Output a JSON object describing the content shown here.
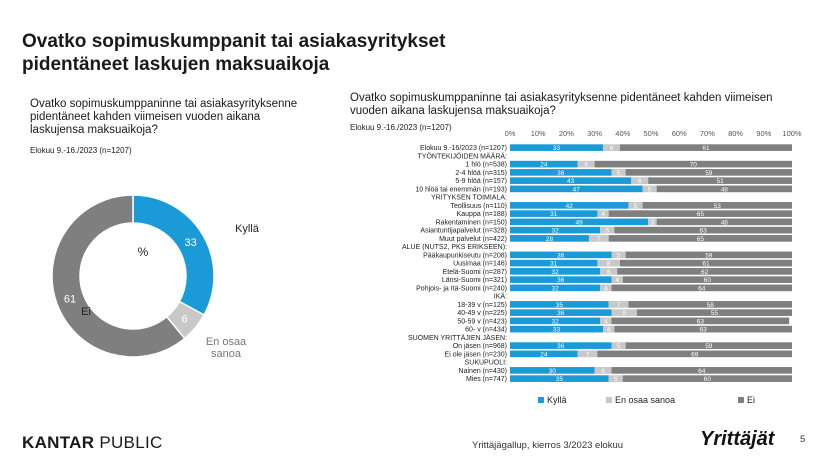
{
  "page": {
    "title": "Ovatko sopimuskumppanit tai asiakasyritykset pidentäneet laskujen maksuaikoja",
    "footer": "Yrittäjägallup, kierros 3/2023 elokuu",
    "page_number": "5",
    "logo_kantar": "KANTAR",
    "logo_public": "PUBLIC",
    "brand_logo": "Yrittäjät"
  },
  "left": {
    "question": "Ovatko sopimuskumppaninne tai asiakasyrityksenne pidentäneet kahden viimeisen vuoden aikana laskujensa maksuaikoja?",
    "subtitle": "Elokuu 9.-16./2023 (n=1207)"
  },
  "right": {
    "question": "Ovatko sopimuskumppaninne tai asiakasyrityksenne pidentäneet kahden viimeisen vuoden aikana laskujensa maksuaikoja?",
    "subtitle": "Elokuu 9.-16./2023 (n=1207)"
  },
  "colors": {
    "kylla": "#1a9bd7",
    "eos": "#c8c8c8",
    "ei": "#7f7f7f"
  },
  "chart_data": [
    {
      "type": "pie",
      "center_label": "%",
      "slices": [
        {
          "name": "Kyllä",
          "value": 33
        },
        {
          "name": "En osaa sanoa",
          "value": 6
        },
        {
          "name": "Ei",
          "value": 61
        }
      ]
    },
    {
      "type": "bar",
      "orientation": "horizontal",
      "stacked": true,
      "xlim": [
        0,
        100
      ],
      "xticks": [
        "0%",
        "10%",
        "20%",
        "30%",
        "40%",
        "50%",
        "60%",
        "70%",
        "80%",
        "90%",
        "100%"
      ],
      "legend_position": "bottom",
      "legend": [
        "Kyllä",
        "En osaa sanoa",
        "Ei"
      ],
      "rows": [
        {
          "label": "Elokuu 9.-16/2023 (n=1207)",
          "values": [
            33,
            6,
            61
          ]
        },
        {
          "label": "TYÖNTEKIJÖIDEN MÄÄRÄ:",
          "header": true
        },
        {
          "label": "1 hlö (n=538)",
          "values": [
            24,
            6,
            70
          ]
        },
        {
          "label": "2-4 hlöä (n=315)",
          "values": [
            36,
            5,
            59
          ]
        },
        {
          "label": "5-9 hlöä (n=157)",
          "values": [
            43,
            6,
            51
          ]
        },
        {
          "label": "10 hlöä tai enemmän (n=193)",
          "values": [
            47,
            5,
            48
          ]
        },
        {
          "label": "YRITYKSEN TOIMIALA:",
          "header": true
        },
        {
          "label": "Teollisuus (n=110)",
          "values": [
            42,
            5,
            53
          ]
        },
        {
          "label": "Kauppa (n=188)",
          "values": [
            31,
            4,
            65
          ]
        },
        {
          "label": "Rakentaminen (n=150)",
          "values": [
            49,
            3,
            48
          ]
        },
        {
          "label": "Asiantuntijapalvelut (n=328)",
          "values": [
            32,
            5,
            63
          ]
        },
        {
          "label": "Muut palvelut (n=422)",
          "values": [
            28,
            7,
            65
          ]
        },
        {
          "label": "ALUE (NUTS2, PKS ERIKSEEN):",
          "header": true
        },
        {
          "label": "Pääkaupunkiseutu (n=208)",
          "values": [
            36,
            5,
            59
          ]
        },
        {
          "label": "Uusimaa (n=146)",
          "values": [
            31,
            8,
            61
          ]
        },
        {
          "label": "Etelä-Suomi (n=287)",
          "values": [
            32,
            6,
            62
          ]
        },
        {
          "label": "Länsi-Suomi (n=321)",
          "values": [
            36,
            4,
            60
          ]
        },
        {
          "label": "Pohjois- ja Itä-Suomi (n=240)",
          "values": [
            32,
            4,
            64
          ]
        },
        {
          "label": "IKÄ:",
          "header": true
        },
        {
          "label": "18-39 v (n=125)",
          "values": [
            35,
            7,
            58
          ]
        },
        {
          "label": "40-49 v (n=225)",
          "values": [
            36,
            9,
            55
          ]
        },
        {
          "label": "50-59 v (n=423)",
          "values": [
            32,
            4,
            63
          ]
        },
        {
          "label": "60- v (n=434)",
          "values": [
            33,
            4,
            63
          ]
        },
        {
          "label": "SUOMEN YRITTÄJIEN JÄSEN:",
          "header": true
        },
        {
          "label": "On jäsen (n=968)",
          "values": [
            36,
            5,
            59
          ]
        },
        {
          "label": "Ei ole jäsen (n=230)",
          "values": [
            24,
            7,
            69
          ]
        },
        {
          "label": "SUKUPUOLI:",
          "header": true
        },
        {
          "label": "Nainen (n=430)",
          "values": [
            30,
            6,
            64
          ]
        },
        {
          "label": "Mies (n=747)",
          "values": [
            35,
            5,
            60
          ]
        }
      ]
    }
  ]
}
